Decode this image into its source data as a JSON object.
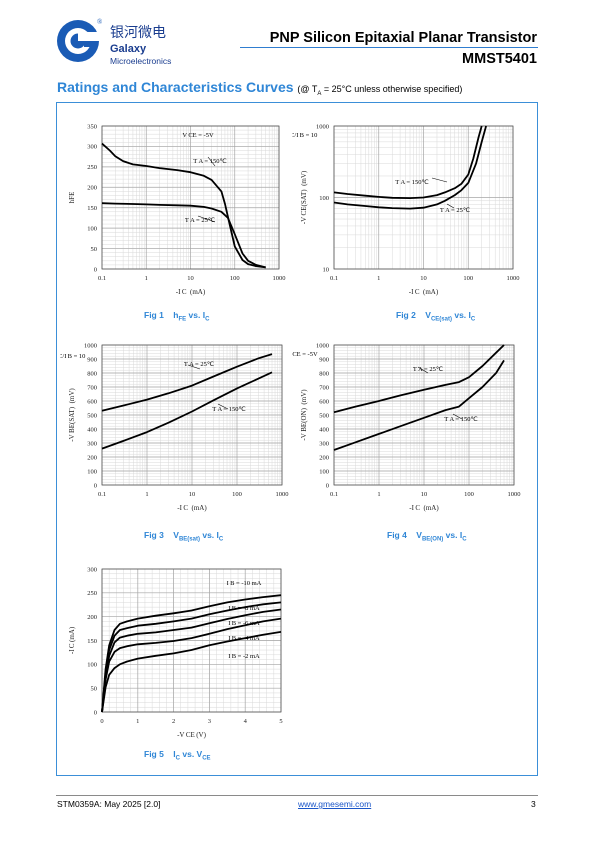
{
  "header": {
    "brand_cn": "银河微电",
    "brand_en_1": "Galaxy",
    "brand_en_2": "Microelectronics",
    "title": "PNP Silicon Epitaxial Planar Transistor",
    "part_number": "MMST5401",
    "brand_color": "#1a3d8f",
    "accent_color": "#2f86d6"
  },
  "section": {
    "title": "Ratings and Characteristics Curves",
    "note_prefix": "(@ T",
    "note_sub": "A",
    "note_suffix": " = 25°C unless otherwise specified)"
  },
  "chart_data": [
    {
      "id": "fig1",
      "type": "line",
      "xscale": "log",
      "xlim": [
        0.1,
        1000
      ],
      "ylim": [
        0,
        350
      ],
      "xticks": [
        "0.1",
        "1",
        "10",
        "100",
        "1000"
      ],
      "yticks": [
        "0",
        "50",
        "100",
        "150",
        "200",
        "250",
        "300",
        "350"
      ],
      "xlabel": "-I C (mA)",
      "ylabel": "hFE",
      "annotations": [
        "V CE = -5V",
        "T A = 150℃",
        "T A = 25℃"
      ],
      "series": [
        {
          "name": "TA = 150℃",
          "x": [
            0.1,
            0.15,
            0.2,
            0.3,
            0.5,
            1,
            2,
            5,
            10,
            20,
            30,
            50,
            60,
            80,
            100,
            150,
            200,
            300,
            500
          ],
          "y": [
            307,
            290,
            276,
            264,
            256,
            252,
            247,
            242,
            237,
            228,
            218,
            190,
            160,
            100,
            55,
            22,
            12,
            7,
            4
          ]
        },
        {
          "name": "TA = 25℃",
          "x": [
            0.1,
            0.2,
            0.5,
            1,
            2,
            5,
            10,
            20,
            30,
            50,
            70,
            100,
            150,
            200,
            300,
            500
          ],
          "y": [
            161,
            160,
            159,
            158,
            157,
            156,
            155,
            152,
            148,
            140,
            125,
            85,
            38,
            20,
            10,
            4
          ]
        }
      ],
      "caption": "Fig 1",
      "caption_label": "hFE vs. IC"
    },
    {
      "id": "fig2",
      "type": "line",
      "xscale": "log",
      "xlim": [
        0.1,
        1000
      ],
      "yscale": "log",
      "ylim": [
        10,
        1000
      ],
      "xticks": [
        "0.1",
        "1",
        "10",
        "100",
        "1000"
      ],
      "yticks": [
        "10",
        "100",
        "1000"
      ],
      "xlabel": "-I C (mA)",
      "ylabel": "-V CE(SAT) (mV)",
      "annotations": [
        "I C/I B = 10",
        "T A = 150℃",
        "T A = 25℃"
      ],
      "series": [
        {
          "name": "TA = 150℃",
          "x": [
            0.1,
            0.2,
            0.5,
            1,
            2,
            5,
            10,
            20,
            30,
            50,
            70,
            100,
            130,
            170,
            200
          ],
          "y": [
            118,
            112,
            106,
            102,
            99,
            98,
            100,
            108,
            118,
            135,
            155,
            210,
            350,
            700,
            1000
          ]
        },
        {
          "name": "TA = 25℃",
          "x": [
            0.1,
            0.2,
            0.5,
            1,
            2,
            5,
            10,
            20,
            30,
            50,
            70,
            100,
            150,
            200,
            250
          ],
          "y": [
            85,
            80,
            76,
            73,
            71,
            70,
            72,
            80,
            90,
            108,
            126,
            160,
            300,
            600,
            1000
          ]
        }
      ],
      "caption": "Fig 2",
      "caption_label": "VCE(sat) vs. IC"
    },
    {
      "id": "fig3",
      "type": "line",
      "xscale": "log",
      "xlim": [
        0.1,
        1000
      ],
      "ylim": [
        0,
        1000
      ],
      "xticks": [
        "0.1",
        "1",
        "10",
        "100",
        "1000"
      ],
      "yticks": [
        "0",
        "100",
        "200",
        "300",
        "400",
        "500",
        "600",
        "700",
        "800",
        "900",
        "1000"
      ],
      "xlabel": "-I C (mA)",
      "ylabel": "-V BE(SAT) (mV)",
      "annotations": [
        "I C/I B = 10",
        "T A = 25℃",
        "T A = 150℃"
      ],
      "series": [
        {
          "name": "TA = 25℃",
          "x": [
            0.1,
            0.3,
            1,
            3,
            10,
            30,
            100,
            300,
            600
          ],
          "y": [
            530,
            568,
            610,
            655,
            710,
            775,
            845,
            905,
            935
          ]
        },
        {
          "name": "TA = 150℃",
          "x": [
            0.1,
            0.3,
            1,
            3,
            10,
            30,
            100,
            300,
            600
          ],
          "y": [
            260,
            315,
            378,
            445,
            525,
            605,
            690,
            760,
            805
          ]
        }
      ],
      "caption": "Fig 3",
      "caption_label": "VBE(sat) vs. IC"
    },
    {
      "id": "fig4",
      "type": "line",
      "xscale": "log",
      "xlim": [
        0.1,
        1000
      ],
      "ylim": [
        0,
        1000
      ],
      "xticks": [
        "0.1",
        "1",
        "10",
        "100",
        "1000"
      ],
      "yticks": [
        "0",
        "100",
        "200",
        "300",
        "400",
        "500",
        "600",
        "700",
        "800",
        "900",
        "1000"
      ],
      "xlabel": "-I C (mA)",
      "ylabel": "-V BE(ON) (mV)",
      "annotations": [
        "V CE = -5V",
        "T A = 25℃",
        "T A = 150℃"
      ],
      "series": [
        {
          "name": "TA = 25℃",
          "x": [
            0.1,
            0.3,
            1,
            3,
            10,
            30,
            60,
            100,
            200,
            400,
            600
          ],
          "y": [
            520,
            560,
            600,
            640,
            680,
            715,
            735,
            770,
            850,
            945,
            1000
          ]
        },
        {
          "name": "TA = 150℃",
          "x": [
            0.1,
            0.3,
            1,
            3,
            10,
            30,
            60,
            100,
            200,
            400,
            600
          ],
          "y": [
            250,
            305,
            365,
            420,
            480,
            535,
            560,
            620,
            700,
            800,
            890
          ]
        }
      ],
      "caption": "Fig 4",
      "caption_label": "VBE(ON) vs. IC"
    },
    {
      "id": "fig5",
      "type": "line",
      "xlim": [
        0,
        5
      ],
      "ylim": [
        0,
        300
      ],
      "xticks": [
        "0",
        "1",
        "2",
        "3",
        "4",
        "5"
      ],
      "yticks": [
        "0",
        "50",
        "100",
        "150",
        "200",
        "250",
        "300"
      ],
      "xlabel": "-V CE (V)",
      "ylabel": "-I C (mA)",
      "annotations": [
        "I B = -10 mA",
        "I B = -8 mA",
        "I B = -6 mA",
        "I B = -4 mA",
        "I B = -2 mA"
      ],
      "series": [
        {
          "name": "IB = -10 mA",
          "x": [
            0,
            0.1,
            0.2,
            0.35,
            0.5,
            0.7,
            1,
            1.5,
            2,
            2.5,
            3,
            3.5,
            4,
            4.5,
            5
          ],
          "y": [
            0,
            90,
            140,
            172,
            185,
            190,
            196,
            202,
            207,
            213,
            222,
            230,
            236,
            241,
            245
          ]
        },
        {
          "name": "IB = -8 mA",
          "x": [
            0,
            0.1,
            0.2,
            0.35,
            0.5,
            0.7,
            1,
            1.5,
            2,
            2.5,
            3,
            3.5,
            4,
            4.5,
            5
          ],
          "y": [
            0,
            82,
            130,
            160,
            172,
            176,
            181,
            185,
            190,
            196,
            205,
            213,
            220,
            226,
            230
          ]
        },
        {
          "name": "IB = -6 mA",
          "x": [
            0,
            0.1,
            0.2,
            0.35,
            0.5,
            0.7,
            1,
            1.5,
            2,
            2.5,
            3,
            3.5,
            4,
            4.5,
            5
          ],
          "y": [
            0,
            75,
            118,
            146,
            156,
            160,
            164,
            167,
            172,
            177,
            186,
            195,
            203,
            210,
            215
          ]
        },
        {
          "name": "IB = -4 mA",
          "x": [
            0,
            0.1,
            0.2,
            0.35,
            0.5,
            0.7,
            1,
            1.5,
            2,
            2.5,
            3,
            3.5,
            4,
            4.5,
            5
          ],
          "y": [
            0,
            68,
            106,
            126,
            134,
            138,
            142,
            145,
            149,
            155,
            164,
            174,
            182,
            190,
            196
          ]
        },
        {
          "name": "IB = -2 mA",
          "x": [
            0,
            0.1,
            0.2,
            0.35,
            0.5,
            0.7,
            1,
            1.5,
            2,
            2.5,
            3,
            3.5,
            4,
            4.5,
            5
          ],
          "y": [
            0,
            52,
            78,
            92,
            100,
            106,
            112,
            118,
            123,
            130,
            140,
            148,
            155,
            162,
            168
          ]
        }
      ],
      "caption": "Fig 5",
      "caption_label": "IC vs. VCE"
    }
  ],
  "footer": {
    "doc_id": "STM0359A: May 2025 [2.0]",
    "website": "www.gmesemi.com",
    "page": "3"
  }
}
